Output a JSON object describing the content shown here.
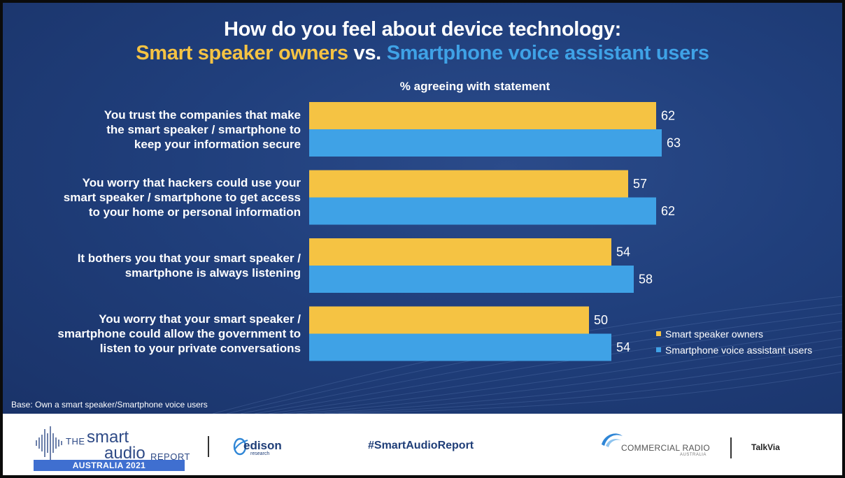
{
  "header": {
    "title_line1": "How do you feel about device technology:",
    "title_part_a": "Smart speaker owners",
    "title_vs": " vs. ",
    "title_part_b": "Smartphone voice assistant users"
  },
  "chart_data": {
    "type": "bar",
    "orientation": "horizontal",
    "subtitle": "% agreeing with statement",
    "categories": [
      "You trust the companies that make\nthe smart speaker / smartphone to\nkeep your information secure",
      "You worry that hackers could use your\nsmart speaker / smartphone to get access\nto your home or personal information",
      "It bothers you that your smart speaker /\nsmartphone is always listening",
      "You worry that your smart speaker /\nsmartphone could allow the government to\nlisten to your private conversations"
    ],
    "series": [
      {
        "name": "Smart speaker owners",
        "color": "#f5c343",
        "values": [
          62,
          57,
          54,
          50
        ]
      },
      {
        "name": "Smartphone voice assistant users",
        "color": "#3fa2e6",
        "values": [
          63,
          62,
          58,
          54
        ]
      }
    ],
    "xlim": [
      0,
      100
    ],
    "grid": false,
    "legend_position": "bottom-right"
  },
  "notes": {
    "base": "Base: Own a smart speaker/Smartphone voice users"
  },
  "footer": {
    "logo_the": "THE",
    "logo_smart": "smart",
    "logo_audio": "audio",
    "logo_report": "REPORT",
    "logo_band": "AUSTRALIA 2021",
    "edison_word": "edison",
    "edison_sub": "research",
    "hashtag": "#SmartAudioReport",
    "cr_word": "COMMERCIAL RADIO",
    "cr_sub": "AUSTRALIA",
    "talkvia": "TalkVia"
  }
}
